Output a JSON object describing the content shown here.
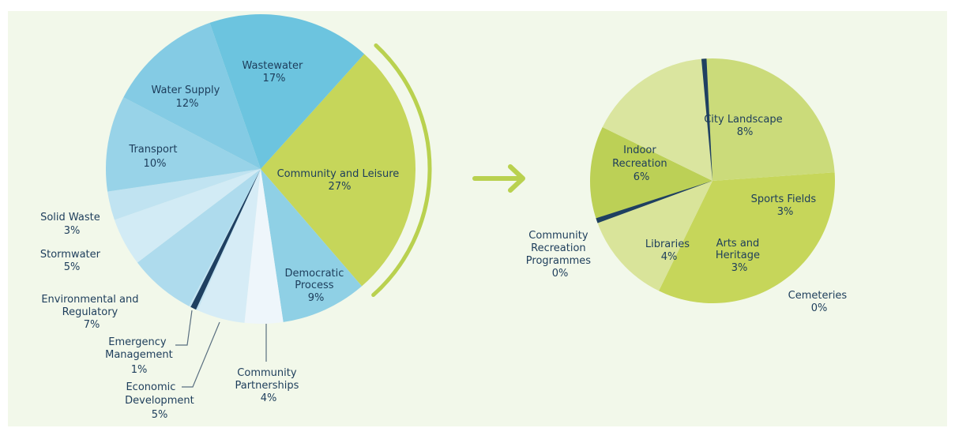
{
  "colors": {
    "background": "#f2f8ea",
    "accent_green": "#b9d14f",
    "dark_navy": "#1d3d5b",
    "leader_line": "#5a6f80"
  },
  "chart_data": [
    {
      "type": "pie",
      "title": "",
      "slices": [
        {
          "label": "Community and Leisure",
          "value": 27,
          "display": "27%",
          "color": "#c6d65a"
        },
        {
          "label": "Democratic Process",
          "value": 9,
          "display": "9%",
          "color": "#8fd0e5"
        },
        {
          "label": "Community Partnerships",
          "value": 4,
          "display": "4%",
          "color": "#eef6fb"
        },
        {
          "label": "Economic Development",
          "value": 5,
          "display": "5%",
          "color": "#d6ecf6"
        },
        {
          "label": "Emergency Management",
          "value": 1,
          "display": "1%",
          "color": "#1f4061"
        },
        {
          "label": "Environmental and Regulatory",
          "value": 7,
          "display": "7%",
          "color": "#aedbed"
        },
        {
          "label": "Stormwater",
          "value": 5,
          "display": "5%",
          "color": "#d2ebf5"
        },
        {
          "label": "Solid Waste",
          "value": 3,
          "display": "3%",
          "color": "#c0e3f1"
        },
        {
          "label": "Transport",
          "value": 10,
          "display": "10%",
          "color": "#98d3e8"
        },
        {
          "label": "Water Supply",
          "value": 12,
          "display": "12%",
          "color": "#84cbe4"
        },
        {
          "label": "Wastewater",
          "value": 17,
          "display": "17%",
          "color": "#6cc4df"
        }
      ],
      "highlighted": "Community and Leisure"
    },
    {
      "type": "pie",
      "title": "",
      "slices": [
        {
          "label": "City Landscape",
          "value": 8,
          "display": "8%",
          "color": "#c6d65a"
        },
        {
          "label": "Sports Fields",
          "value": 3,
          "display": "3%",
          "color": "#d9e49a"
        },
        {
          "label": "Cemeteries",
          "value": 0,
          "display": "0%",
          "color": "#1f4061"
        },
        {
          "label": "Arts and Heritage",
          "value": 3,
          "display": "3%",
          "color": "#bcd056"
        },
        {
          "label": "Libraries",
          "value": 4,
          "display": "4%",
          "color": "#dae59f"
        },
        {
          "label": "Community Recreation Programmes",
          "value": 0,
          "display": "0%",
          "color": "#1f4061"
        },
        {
          "label": "Indoor Recreation",
          "value": 6,
          "display": "6%",
          "color": "#cbdb7a"
        }
      ]
    }
  ],
  "labels": {
    "community_leisure": [
      "Community and Leisure",
      "27%"
    ],
    "democratic_process": [
      "Democratic",
      "Process",
      "9%"
    ],
    "community_partnerships": [
      "Community",
      "Partnerships",
      "4%"
    ],
    "economic_development": [
      "Economic",
      "Development",
      "5%"
    ],
    "emergency_management": [
      "Emergency",
      "Management",
      "1%"
    ],
    "environmental_regulatory": [
      "Environmental and",
      "Regulatory",
      "7%"
    ],
    "stormwater": [
      "Stormwater",
      "5%"
    ],
    "solid_waste": [
      "Solid Waste",
      "3%"
    ],
    "transport": [
      "Transport",
      "10%"
    ],
    "water_supply": [
      "Water Supply",
      "12%"
    ],
    "wastewater": [
      "Wastewater",
      "17%"
    ],
    "city_landscape": [
      "City Landscape",
      "8%"
    ],
    "sports_fields": [
      "Sports Fields",
      "3%"
    ],
    "cemeteries": [
      "Cemeteries",
      "0%"
    ],
    "arts_heritage": [
      "Arts and",
      "Heritage",
      "3%"
    ],
    "libraries": [
      "Libraries",
      "4%"
    ],
    "community_recreation": [
      "Community",
      "Recreation",
      "Programmes",
      "0%"
    ],
    "indoor_recreation": [
      "Indoor",
      "Recreation",
      "6%"
    ]
  }
}
